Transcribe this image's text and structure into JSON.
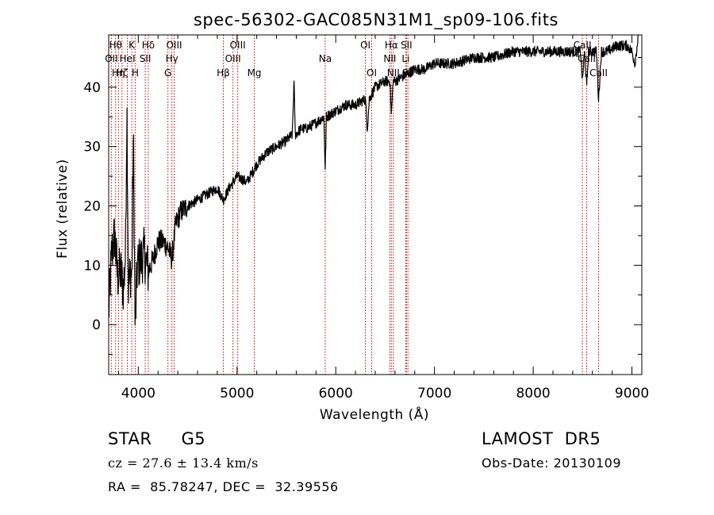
{
  "chart_data": {
    "type": "line",
    "title": "spec-56302-GAC085N31M1_sp09-106.fits",
    "xlabel": "Wavelength (Å)",
    "ylabel": "Flux (relative)",
    "xlim": [
      3700,
      9100
    ],
    "ylim": [
      -8.4,
      48.8
    ],
    "xticks": [
      4000,
      5000,
      6000,
      7000,
      8000,
      9000
    ],
    "yticks": [
      0,
      10,
      20,
      30,
      40
    ],
    "grid": false,
    "series": [
      {
        "x": [
          3700,
          3730,
          3760,
          3790,
          3820,
          3850,
          3870,
          3885,
          3900,
          3920,
          3935,
          3950,
          3968,
          3990,
          4030,
          4060,
          4101,
          4150,
          4200,
          4250,
          4300,
          4340,
          4380,
          4430,
          4500,
          4600,
          4700,
          4800,
          4861,
          4920,
          5000,
          5100,
          5200,
          5300,
          5400,
          5500,
          5560,
          5577,
          5590,
          5650,
          5700,
          5800,
          5880,
          5893,
          5905,
          6000,
          6100,
          6200,
          6300,
          6320,
          6340,
          6400,
          6500,
          6550,
          6563,
          6580,
          6600,
          6700,
          6800,
          6900,
          7000,
          7200,
          7400,
          7600,
          7800,
          8000,
          8200,
          8400,
          8480,
          8498,
          8520,
          8542,
          8560,
          8600,
          8640,
          8662,
          8690,
          8750,
          8850,
          8950,
          9000,
          9030,
          9060
        ],
        "y": [
          2,
          12,
          15,
          8,
          9,
          6,
          12,
          37,
          6,
          9,
          8,
          32,
          -1,
          10,
          11,
          12,
          9,
          11,
          14,
          14,
          13,
          11,
          17,
          19,
          20,
          21,
          22,
          23,
          21,
          23,
          25,
          24,
          27,
          29,
          30,
          31,
          32,
          41,
          32,
          33,
          33,
          34,
          35,
          26,
          35,
          36,
          37,
          37,
          38,
          33,
          38,
          40,
          41,
          41,
          35,
          41,
          41,
          42,
          43,
          43,
          44,
          44,
          45,
          45,
          46,
          46,
          46,
          46,
          46,
          41,
          46,
          40,
          46,
          46,
          46,
          38,
          46,
          46,
          47,
          47,
          46,
          44,
          48
        ]
      }
    ],
    "line_markers": [
      {
        "wavelength": 3727,
        "label": "OII",
        "row": 2
      },
      {
        "wavelength": 3770,
        "label": "Hθ",
        "row": 1
      },
      {
        "wavelength": 3799,
        "label": "Hη",
        "row": 3
      },
      {
        "wavelength": 3835,
        "label": "Hζ",
        "row": 3
      },
      {
        "wavelength": 3889,
        "label": "HeI",
        "row": 2
      },
      {
        "wavelength": 3934,
        "label": "K",
        "row": 1
      },
      {
        "wavelength": 3968,
        "label": "H",
        "row": 3
      },
      {
        "wavelength": 4070,
        "label": "SII",
        "row": 2
      },
      {
        "wavelength": 4101,
        "label": "Hδ",
        "row": 1
      },
      {
        "wavelength": 4300,
        "label": "G",
        "row": 3
      },
      {
        "wavelength": 4340,
        "label": "Hγ",
        "row": 2
      },
      {
        "wavelength": 4363,
        "label": "OIII",
        "row": 1
      },
      {
        "wavelength": 4861,
        "label": "Hβ",
        "row": 3
      },
      {
        "wavelength": 4959,
        "label": "OIII",
        "row": 2
      },
      {
        "wavelength": 5007,
        "label": "OIII",
        "row": 1
      },
      {
        "wavelength": 5175,
        "label": "Mg",
        "row": 3
      },
      {
        "wavelength": 5893,
        "label": "Na",
        "row": 2
      },
      {
        "wavelength": 6300,
        "label": "OI",
        "row": 1
      },
      {
        "wavelength": 6364,
        "label": "OI",
        "row": 3
      },
      {
        "wavelength": 6548,
        "label": "NII",
        "row": 2
      },
      {
        "wavelength": 6563,
        "label": "Hα",
        "row": 1
      },
      {
        "wavelength": 6583,
        "label": "NII",
        "row": 3
      },
      {
        "wavelength": 6708,
        "label": "Li",
        "row": 2
      },
      {
        "wavelength": 6716,
        "label": "SII",
        "row": 1
      },
      {
        "wavelength": 6731,
        "label": "SII",
        "row": 3
      },
      {
        "wavelength": 8498,
        "label": "CaII",
        "row": 1
      },
      {
        "wavelength": 8542,
        "label": "CaII",
        "row": 2
      },
      {
        "wavelength": 8662,
        "label": "CaII",
        "row": 3
      }
    ],
    "line_marker_color": "#cc0000"
  },
  "info": {
    "class": "STAR",
    "subclass": "G5",
    "survey": "LAMOST  DR5",
    "velocity": "cz = 27.6 ± 13.4 km/s",
    "obs_date": "Obs-Date: 20130109",
    "coords": "RA =  85.78247, DEC =  32.39556"
  }
}
